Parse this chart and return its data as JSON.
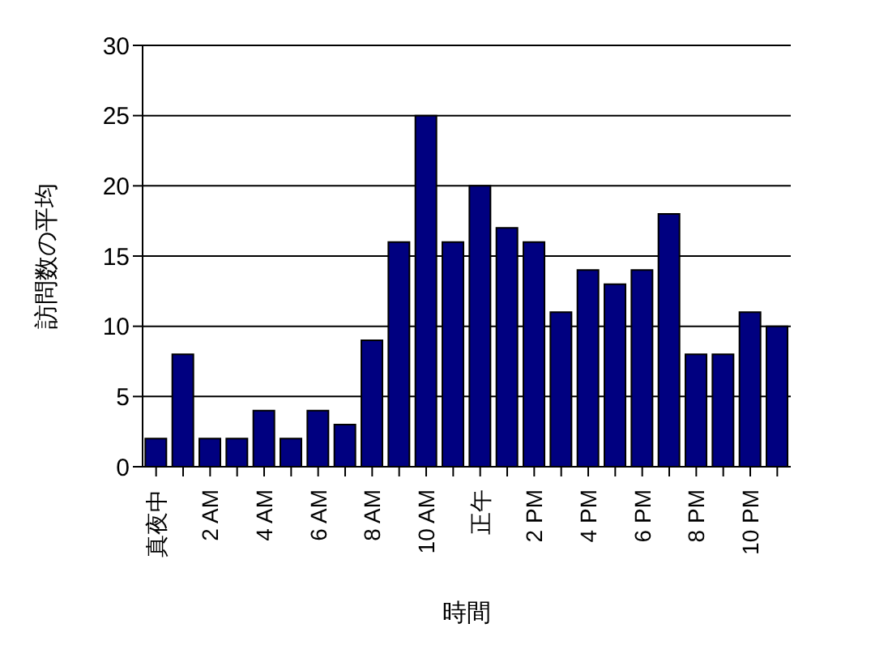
{
  "chart_data": {
    "type": "bar",
    "xlabel": "時間",
    "ylabel": "訪問数の平均",
    "categories": [
      "真夜中",
      null,
      "2 AM",
      null,
      "4 AM",
      null,
      "6 AM",
      null,
      "8 AM",
      null,
      "10 AM",
      null,
      "正午",
      null,
      "2 PM",
      null,
      "4 PM",
      null,
      "6 PM",
      null,
      "8 PM",
      null,
      "10 PM",
      null
    ],
    "values": [
      2,
      8,
      2,
      2,
      4,
      2,
      4,
      3,
      9,
      16,
      25,
      16,
      20,
      17,
      16,
      11,
      14,
      13,
      14,
      18,
      8,
      8,
      11,
      10
    ],
    "color": "#000080",
    "ylim": [
      0,
      30
    ],
    "yticks": [
      0,
      5,
      10,
      15,
      20,
      25,
      30
    ],
    "grid": "y"
  }
}
